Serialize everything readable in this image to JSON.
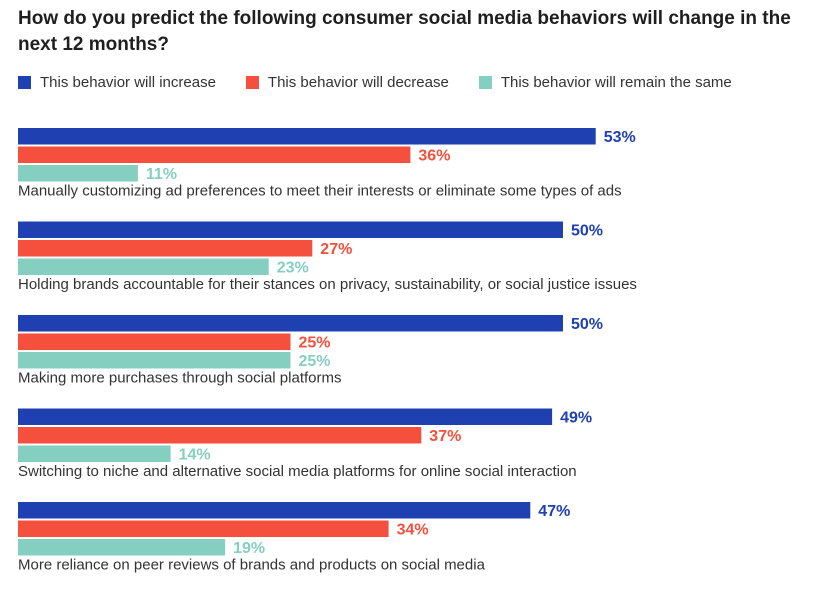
{
  "chart_data": {
    "type": "bar",
    "orientation": "horizontal",
    "title": "How do you predict the following consumer social media behaviors will change in the next 12 months?",
    "categories": [
      "Manually customizing ad preferences to meet their interests or eliminate some types of ads",
      "Holding brands accountable for their stances on privacy, sustainability, or social justice issues",
      "Making more purchases through social platforms",
      "Switching to niche and alternative social media platforms for online social interaction",
      "More reliance on peer reviews of brands and products on social media"
    ],
    "series": [
      {
        "name": "This behavior will increase",
        "values": [
          53,
          50,
          50,
          49,
          47
        ],
        "labels": [
          "53%",
          "50%",
          "50%",
          "49%",
          "47%"
        ]
      },
      {
        "name": "This behavior will decrease",
        "values": [
          36,
          27,
          25,
          37,
          34
        ],
        "labels": [
          "36%",
          "27%",
          "25%",
          "37%",
          "34%"
        ]
      },
      {
        "name": "This behavior will remain the same",
        "values": [
          11,
          23,
          25,
          14,
          19
        ],
        "labels": [
          "11%",
          "23%",
          "25%",
          "14%",
          "19%"
        ]
      }
    ],
    "colors": [
      "#1e40b0",
      "#f5503d",
      "#85cfc0"
    ],
    "label_colors": [
      "#1e40b0",
      "#f5503d",
      "#85cfc0"
    ],
    "xlim": [
      0,
      100
    ],
    "legend_position": "top-left",
    "grid": false
  }
}
